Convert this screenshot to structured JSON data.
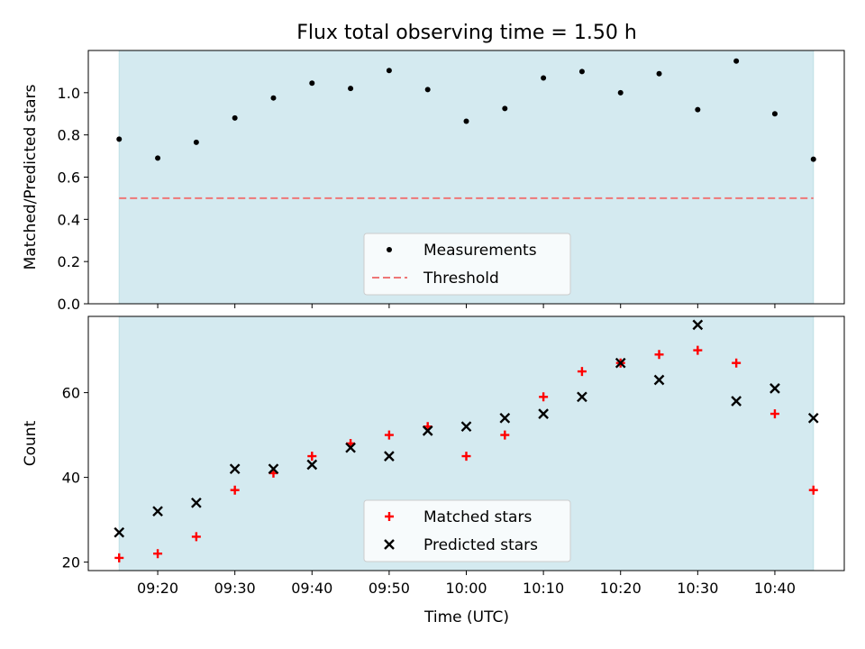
{
  "chart_data": {
    "title": "Flux total observing time = 1.50 h",
    "shared_x": {
      "label": "Time (UTC)",
      "range": [
        "09:11",
        "10:49"
      ],
      "ticks": [
        "09:20",
        "09:30",
        "09:40",
        "09:50",
        "10:00",
        "10:10",
        "10:20",
        "10:30",
        "10:40"
      ],
      "shaded_span": [
        "09:15",
        "10:45"
      ],
      "shade_color": "#d4eaf0"
    },
    "panels": [
      {
        "type": "scatter",
        "ylabel": "Matched/Predicted stars",
        "ylim": [
          0,
          1.2
        ],
        "yticks": [
          "0.0",
          "0.2",
          "0.4",
          "0.6",
          "0.8",
          "1.0"
        ],
        "legend_position": "lower center",
        "series": [
          {
            "name": "Measurements",
            "marker": "dot",
            "color": "#000000",
            "x": [
              "09:15",
              "09:20",
              "09:25",
              "09:30",
              "09:35",
              "09:40",
              "09:45",
              "09:50",
              "09:55",
              "10:00",
              "10:05",
              "10:10",
              "10:15",
              "10:20",
              "10:25",
              "10:30",
              "10:35",
              "10:40",
              "10:45"
            ],
            "y": [
              0.78,
              0.69,
              0.765,
              0.88,
              0.975,
              1.045,
              1.02,
              1.105,
              1.015,
              0.865,
              0.925,
              1.07,
              1.1,
              1.0,
              1.09,
              0.92,
              1.15,
              0.9,
              0.685
            ]
          }
        ],
        "lines": [
          {
            "name": "Threshold",
            "y": 0.5,
            "x": [
              "09:15",
              "10:45"
            ],
            "style": "dashed",
            "color": "#ee7777"
          }
        ]
      },
      {
        "type": "scatter",
        "ylabel": "Count",
        "ylim": [
          18,
          78
        ],
        "yticks": [
          "20",
          "40",
          "60"
        ],
        "legend_position": "lower center",
        "series": [
          {
            "name": "Matched stars",
            "marker": "plus",
            "color": "#ff0000",
            "x": [
              "09:15",
              "09:20",
              "09:25",
              "09:30",
              "09:35",
              "09:40",
              "09:45",
              "09:50",
              "09:55",
              "10:00",
              "10:05",
              "10:10",
              "10:15",
              "10:20",
              "10:25",
              "10:30",
              "10:35",
              "10:40",
              "10:45"
            ],
            "y": [
              21,
              22,
              26,
              37,
              41,
              45,
              48,
              50,
              52,
              45,
              50,
              59,
              65,
              67,
              69,
              70,
              67,
              55,
              37
            ]
          },
          {
            "name": "Predicted stars",
            "marker": "x",
            "color": "#000000",
            "x": [
              "09:15",
              "09:20",
              "09:25",
              "09:30",
              "09:35",
              "09:40",
              "09:45",
              "09:50",
              "09:55",
              "10:00",
              "10:05",
              "10:10",
              "10:15",
              "10:20",
              "10:25",
              "10:30",
              "10:35",
              "10:40",
              "10:45"
            ],
            "y": [
              27,
              32,
              34,
              42,
              42,
              43,
              47,
              45,
              51,
              52,
              54,
              55,
              59,
              67,
              63,
              76,
              58,
              61,
              54
            ]
          }
        ]
      }
    ]
  }
}
